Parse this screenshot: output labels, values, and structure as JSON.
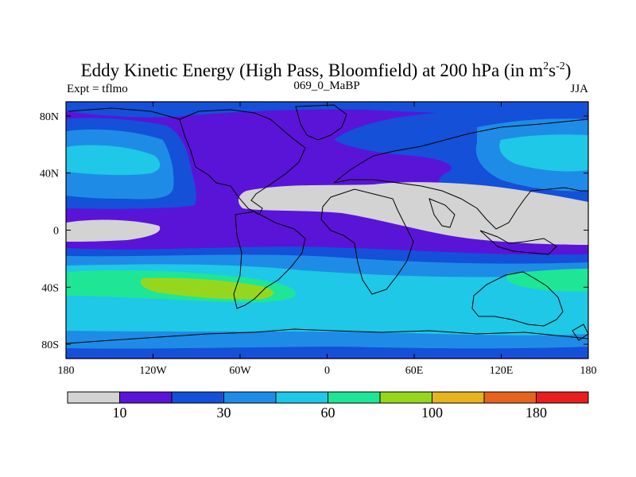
{
  "chart_data": {
    "type": "heatmap",
    "title": {
      "main": "Eddy Kinetic Energy (High Pass, Bloomfield) at 200 hPa (in m",
      "exp1": "2",
      "mid": "s",
      "exp2": "-2",
      "end": ")"
    },
    "subtitle_left": "Expt = tflmo",
    "subtitle_center": "069_0_MaBP",
    "subtitle_right": "JJA",
    "x_ticks": [
      {
        "value": -180,
        "label": "180"
      },
      {
        "value": -120,
        "label": "120W"
      },
      {
        "value": -60,
        "label": "60W"
      },
      {
        "value": 0,
        "label": "0"
      },
      {
        "value": 60,
        "label": "60E"
      },
      {
        "value": 120,
        "label": "120E"
      },
      {
        "value": 180,
        "label": "180"
      }
    ],
    "y_ticks": [
      {
        "value": 80,
        "label": "80N"
      },
      {
        "value": 40,
        "label": "40N"
      },
      {
        "value": 0,
        "label": "0"
      },
      {
        "value": -40,
        "label": "40S"
      },
      {
        "value": -80,
        "label": "80S"
      }
    ],
    "xlim": [
      -180,
      180
    ],
    "ylim": [
      -90,
      90
    ],
    "colorbar": {
      "colors": [
        "#d3d3d3",
        "#5a14d8",
        "#1450d8",
        "#1e8ce6",
        "#1ec8e6",
        "#1ee696",
        "#96d71e",
        "#e6b41e",
        "#e6641e",
        "#e61e1e"
      ],
      "labels": [
        {
          "boundary": 1,
          "label": "10"
        },
        {
          "boundary": 3,
          "label": "30"
        },
        {
          "boundary": 5,
          "label": "60"
        },
        {
          "boundary": 7,
          "label": "100"
        },
        {
          "boundary": 9,
          "label": "180"
        }
      ]
    }
  }
}
